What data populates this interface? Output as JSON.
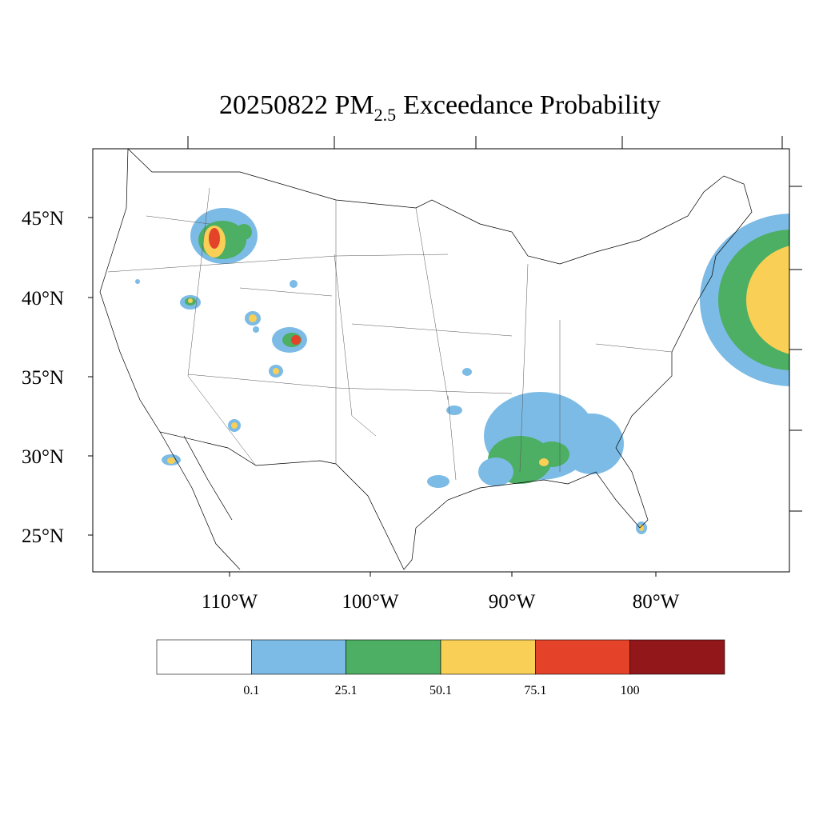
{
  "title": {
    "main": "20250822 PM",
    "subscript": "2.5",
    "rest": "Exceedance Probability"
  },
  "map": {
    "lat_labels": [
      "45°N",
      "40°N",
      "35°N",
      "30°N",
      "25°N"
    ],
    "lon_labels": [
      "110°W",
      "100°W",
      "90°W",
      "80°W"
    ]
  },
  "colorbar": {
    "colors": [
      "#ffffff",
      "#7cbbe5",
      "#4caf63",
      "#f9cf55",
      "#e44329",
      "#92171b"
    ],
    "labels": [
      "0.1",
      "25.1",
      "50.1",
      "75.1",
      "100"
    ]
  }
}
